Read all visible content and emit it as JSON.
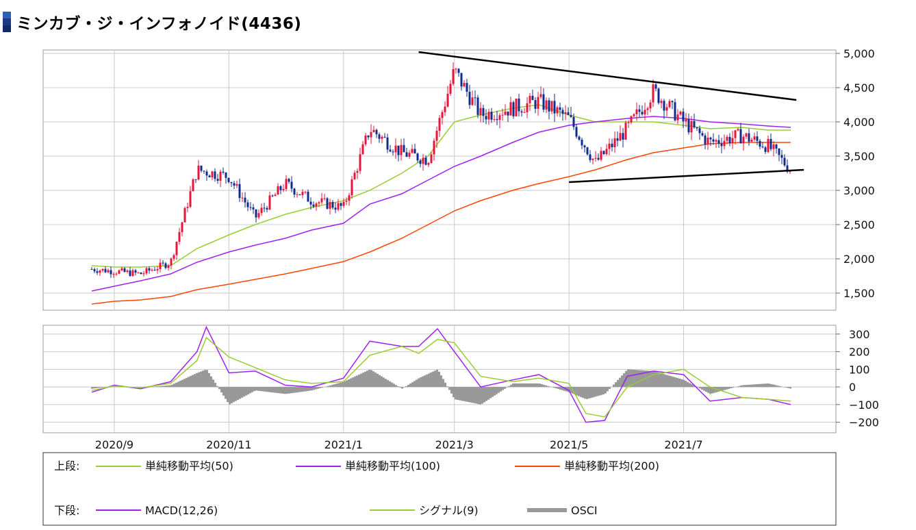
{
  "page": {
    "title": "ミンカブ・ジ・インフォノイド(4436)"
  },
  "colors": {
    "up_candle": "#e8143c",
    "down_candle": "#102c8c",
    "sma50": "#9acd32",
    "sma100": "#a020f0",
    "sma200": "#ff4500",
    "macd": "#a020f0",
    "signal": "#9acd32",
    "osci": "#999999",
    "trendline": "#000000",
    "grid": "#c8c8c8"
  },
  "legend": {
    "upper_label": "上段:",
    "lower_label": "下段:",
    "upper_items": [
      {
        "name": "単純移動平均(50)",
        "color": "#9acd32"
      },
      {
        "name": "単純移動平均(100)",
        "color": "#a020f0"
      },
      {
        "name": "単純移動平均(200)",
        "color": "#ff4500"
      }
    ],
    "lower_items": [
      {
        "name": "MACD(12,26)",
        "color": "#a020f0",
        "kind": "line"
      },
      {
        "name": "シグナル(9)",
        "color": "#9acd32",
        "kind": "line"
      },
      {
        "name": "OSCI",
        "color": "#999999",
        "kind": "bar"
      }
    ]
  },
  "chart_data": [
    {
      "type": "candlestick",
      "title": "",
      "x_tick_labels": [
        "2020/9",
        "2020/11",
        "2021/1",
        "2021/3",
        "2021/5",
        "2021/7"
      ],
      "y_tick_labels": [
        "5,000",
        "4,500",
        "4,000",
        "3,500",
        "3,000",
        "2,500",
        "2,000",
        "1,500"
      ],
      "ylim": [
        1250,
        5050
      ],
      "x": [
        "2020/8/20",
        "2020/9/1",
        "2020/9/15",
        "2020/10/1",
        "2020/10/15",
        "2020/11/1",
        "2020/11/15",
        "2020/12/1",
        "2020/12/15",
        "2021/1/1",
        "2021/1/15",
        "2021/2/1",
        "2021/2/15",
        "2021/3/1",
        "2021/3/15",
        "2021/4/1",
        "2021/4/15",
        "2021/5/1",
        "2021/5/15",
        "2021/6/1",
        "2021/6/15",
        "2021/7/1",
        "2021/7/15",
        "2021/8/1",
        "2021/8/15",
        "2021/8/27"
      ],
      "close": [
        1850,
        1820,
        1780,
        1950,
        3300,
        3200,
        2600,
        3100,
        2850,
        2750,
        3900,
        3550,
        3450,
        4750,
        4100,
        4200,
        4300,
        4050,
        3400,
        3900,
        4450,
        4000,
        3700,
        3800,
        3650,
        3300
      ],
      "series": [
        {
          "name": "単純移動平均(50)",
          "values": [
            1900,
            1880,
            1880,
            1900,
            2150,
            2350,
            2500,
            2650,
            2750,
            2850,
            3000,
            3250,
            3500,
            4000,
            4100,
            4200,
            4250,
            4100,
            4000,
            4000,
            4000,
            3950,
            3900,
            3920,
            3880,
            3880
          ]
        },
        {
          "name": "単純移動平均(100)",
          "values": [
            1530,
            1600,
            1680,
            1780,
            1950,
            2100,
            2200,
            2300,
            2420,
            2520,
            2800,
            2950,
            3150,
            3350,
            3500,
            3700,
            3850,
            3950,
            4000,
            4050,
            4080,
            4050,
            4000,
            3970,
            3940,
            3920
          ]
        },
        {
          "name": "単純移動平均(200)",
          "values": [
            1340,
            1380,
            1400,
            1450,
            1550,
            1630,
            1700,
            1780,
            1860,
            1960,
            2100,
            2300,
            2500,
            2700,
            2850,
            3000,
            3100,
            3200,
            3300,
            3450,
            3550,
            3620,
            3680,
            3700,
            3700,
            3700
          ]
        }
      ],
      "trendlines": [
        {
          "from": [
            "2021/2/10",
            5020
          ],
          "to": [
            "2021/8/30",
            4320
          ]
        },
        {
          "from": [
            "2021/5/1",
            3120
          ],
          "to": [
            "2021/9/3",
            3300
          ]
        }
      ]
    },
    {
      "type": "line",
      "title": "",
      "y_tick_labels": [
        "300",
        "200",
        "100",
        "0",
        "−100",
        "−200"
      ],
      "ylim": [
        -260,
        350
      ],
      "x": [
        "2020/8/20",
        "2020/9/1",
        "2020/9/15",
        "2020/10/1",
        "2020/10/15",
        "2020/10/20",
        "2020/11/1",
        "2020/11/15",
        "2020/12/1",
        "2020/12/15",
        "2021/1/1",
        "2021/1/15",
        "2021/2/1",
        "2021/2/10",
        "2021/2/20",
        "2021/3/1",
        "2021/3/15",
        "2021/4/1",
        "2021/4/15",
        "2021/5/1",
        "2021/5/10",
        "2021/5/20",
        "2021/6/1",
        "2021/6/15",
        "2021/7/1",
        "2021/7/15",
        "2021/8/1",
        "2021/8/15",
        "2021/8/27"
      ],
      "series": [
        {
          "name": "MACD(12,26)",
          "values": [
            -30,
            10,
            -10,
            30,
            200,
            340,
            80,
            90,
            10,
            0,
            50,
            260,
            230,
            230,
            330,
            200,
            0,
            40,
            70,
            -20,
            -200,
            -190,
            60,
            90,
            70,
            -80,
            -60,
            -70,
            -100
          ]
        },
        {
          "name": "シグナル(9)",
          "values": [
            -20,
            5,
            -5,
            20,
            150,
            280,
            170,
            110,
            40,
            20,
            30,
            180,
            230,
            190,
            270,
            250,
            60,
            30,
            50,
            20,
            -150,
            -170,
            0,
            70,
            100,
            0,
            -60,
            -70,
            -80
          ]
        },
        {
          "name": "OSCI",
          "values": [
            -10,
            5,
            -5,
            10,
            80,
            100,
            -100,
            -20,
            -40,
            -20,
            30,
            100,
            -10,
            50,
            100,
            -70,
            -100,
            20,
            20,
            -30,
            -70,
            -40,
            100,
            90,
            40,
            -40,
            10,
            20,
            -10
          ]
        }
      ]
    }
  ]
}
